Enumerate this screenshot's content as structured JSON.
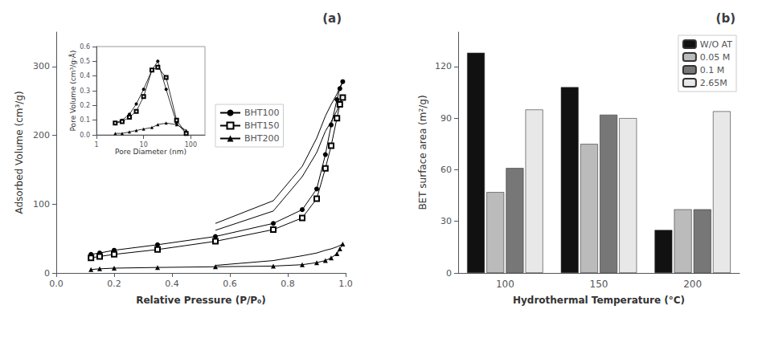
{
  "chart_data": [
    {
      "type": "line",
      "title": "(a)",
      "xlabel": "Relative Pressure (P/P₀)",
      "ylabel": "Adsorbed Volume (cm³/g)",
      "xlim": [
        0.0,
        1.0
      ],
      "ylim": [
        0,
        350
      ],
      "xticks": [
        {
          "value": 0.0,
          "label": "0.0"
        },
        0.2,
        0.4,
        0.6,
        0.8,
        {
          "value": 1.0,
          "label": "1.0"
        }
      ],
      "yticks": [
        0,
        100,
        200,
        300
      ],
      "grid": false,
      "legend": "center",
      "series": [
        {
          "name": "BHT100",
          "color": "#000000",
          "marker": "circle",
          "x": [
            0.12,
            0.15,
            0.2,
            0.35,
            0.55,
            0.75,
            0.85,
            0.9,
            0.93,
            0.95,
            0.97,
            0.98,
            0.99
          ],
          "values": [
            27,
            29,
            33,
            41,
            53,
            72,
            92,
            122,
            172,
            215,
            252,
            268,
            278
          ]
        },
        {
          "name": "BHT150",
          "color": "#000000",
          "marker": "open_square",
          "x": [
            0.12,
            0.15,
            0.2,
            0.35,
            0.55,
            0.75,
            0.85,
            0.9,
            0.93,
            0.95,
            0.97,
            0.98,
            0.99
          ],
          "values": [
            22,
            24,
            27,
            34,
            46,
            63,
            80,
            108,
            152,
            185,
            225,
            245,
            255
          ]
        },
        {
          "name": "BHT200",
          "color": "#000000",
          "marker": "triangle",
          "x": [
            0.12,
            0.15,
            0.2,
            0.35,
            0.55,
            0.75,
            0.85,
            0.9,
            0.93,
            0.95,
            0.97,
            0.98,
            0.99
          ],
          "values": [
            5,
            6,
            7,
            8,
            9,
            10,
            12,
            15,
            18,
            22,
            28,
            35,
            42
          ]
        },
        {
          "color": "#000000",
          "marker": "none",
          "x": [
            0.99,
            0.98,
            0.97,
            0.95,
            0.93,
            0.9,
            0.85,
            0.75,
            0.55
          ],
          "values": [
            278,
            270,
            260,
            245,
            228,
            196,
            155,
            105,
            72
          ]
        },
        {
          "color": "#000000",
          "marker": "none",
          "x": [
            0.99,
            0.98,
            0.97,
            0.95,
            0.93,
            0.9,
            0.85,
            0.75,
            0.55
          ],
          "values": [
            255,
            248,
            236,
            220,
            206,
            175,
            140,
            90,
            62
          ]
        },
        {
          "color": "#000000",
          "marker": "none",
          "x": [
            0.99,
            0.98,
            0.97,
            0.95,
            0.93,
            0.9,
            0.85,
            0.75,
            0.55
          ],
          "values": [
            42,
            40,
            38,
            35,
            33,
            29,
            25,
            18,
            11
          ]
        }
      ]
    },
    {
      "type": "line",
      "xlabel": "Pore Diameter (nm)",
      "ylabel": "Pore Volume (cm³/g·Å)",
      "log": "x",
      "xlim": [
        1,
        200
      ],
      "ylim": [
        0.0,
        0.6
      ],
      "xticks": [
        1,
        10,
        100
      ],
      "yticks": [
        {
          "value": 0.0,
          "label": "0.0"
        },
        0.1,
        0.2,
        0.3,
        0.4,
        0.5,
        0.6
      ],
      "grid": false,
      "series": [
        {
          "color": "#000000",
          "marker": "circle",
          "x": [
            2.5,
            3.5,
            5,
            7,
            10,
            15,
            20,
            30,
            50,
            80
          ],
          "values": [
            0.08,
            0.1,
            0.14,
            0.21,
            0.31,
            0.44,
            0.5,
            0.31,
            0.08,
            0.01
          ]
        },
        {
          "color": "#000000",
          "marker": "open_square",
          "x": [
            2.5,
            3.5,
            5,
            7,
            10,
            15,
            20,
            30,
            50,
            80
          ],
          "values": [
            0.08,
            0.09,
            0.12,
            0.16,
            0.26,
            0.44,
            0.46,
            0.39,
            0.1,
            0.01
          ]
        },
        {
          "color": "#000000",
          "marker": "triangle",
          "x": [
            2.5,
            3.5,
            5,
            7,
            10,
            15,
            20,
            30,
            50,
            80
          ],
          "values": [
            0.01,
            0.01,
            0.02,
            0.03,
            0.04,
            0.05,
            0.07,
            0.08,
            0.07,
            0.03
          ]
        }
      ]
    },
    {
      "type": "bar",
      "title": "(b)",
      "xlabel": "Hydrothermal Temperature (°C)",
      "ylabel": "BET surface area (m²/g)",
      "categories": [
        "100",
        "150",
        "200"
      ],
      "ylim": [
        0,
        140
      ],
      "yticks": [
        0,
        30,
        60,
        90,
        120
      ],
      "grid": false,
      "legend": "upper right",
      "series": [
        {
          "name": "W/O AT",
          "color": "#111111",
          "values": [
            128,
            108,
            25
          ]
        },
        {
          "name": "0.05 M",
          "color": "#bbbbbb",
          "values": [
            47,
            75,
            37
          ]
        },
        {
          "name": "0.1 M",
          "color": "#777777",
          "values": [
            61,
            92,
            37
          ]
        },
        {
          "name": "2.65M",
          "color": "#e8e8e8",
          "values": [
            95,
            90,
            94
          ]
        }
      ]
    }
  ]
}
